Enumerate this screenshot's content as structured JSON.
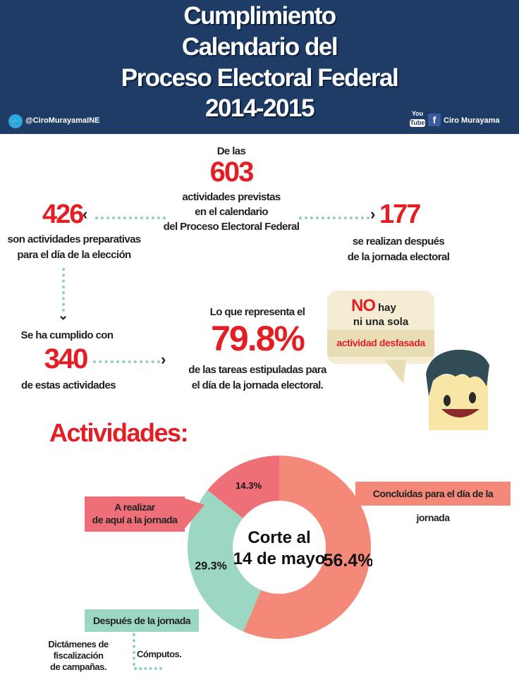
{
  "header": {
    "title_lines": [
      "Cumplimiento",
      "Calendario del",
      "Proceso Electoral Federal",
      "2014-2015"
    ],
    "twitter_handle": "@CiroMurayamaINE",
    "youtube_top": "You",
    "youtube_bottom": "Tube",
    "facebook_glyph": "f",
    "facebook_name": "Ciro Murayama"
  },
  "summary": {
    "intro": "De las",
    "total": "603",
    "total_desc": [
      "actividades previstas",
      "en el calendario",
      "del Proceso Electoral Federal"
    ],
    "prep_count": "426",
    "prep_desc": [
      "son actividades preparativas",
      "para el día de la elección"
    ],
    "after_count": "177",
    "after_desc": [
      "se realizan después",
      "de la jornada electoral"
    ],
    "done_intro": "Se ha cumplido con",
    "done_count": "340",
    "done_desc": "de estas actividades",
    "pct_intro": "Lo que representa el",
    "pct_value": "79.8%",
    "pct_desc": [
      "de las tareas estipuladas para",
      "el día de la jornada electoral."
    ]
  },
  "bubble": {
    "no": "NO",
    "hay": "hay",
    "line2": "ni una sola",
    "line3": "actividad desfasada"
  },
  "section_title": "Actividades:",
  "colors": {
    "header_bg": "#1e3c66",
    "accent_red": "#e31e24",
    "concluidas": "#f4897a",
    "realizar": "#ee6f78",
    "despues": "#9bd7c3",
    "dots": "#8fcfc3"
  },
  "chart_data": {
    "type": "pie",
    "center_label": [
      "Corte al",
      "14 de mayo"
    ],
    "slices": [
      {
        "name": "Concluidas para el día de la jornada",
        "value": 56.4,
        "label": "56.4%",
        "color": "#f4897a"
      },
      {
        "name": "Después de la jornada",
        "value": 29.3,
        "label": "29.3%",
        "color": "#9bd7c3"
      },
      {
        "name": "A realizar de aquí a la jornada",
        "value": 14.3,
        "label": "14.3%",
        "color": "#ee6f78"
      }
    ]
  },
  "legend": {
    "concluidas": "Concluidas para el día de la jornada",
    "realizar": [
      "A realizar",
      "de aquí a la jornada"
    ],
    "despues": "Después de la jornada",
    "dictamenes": [
      "Dictámenes de fiscalización",
      "de campañas."
    ],
    "computos": "Cómputos."
  }
}
